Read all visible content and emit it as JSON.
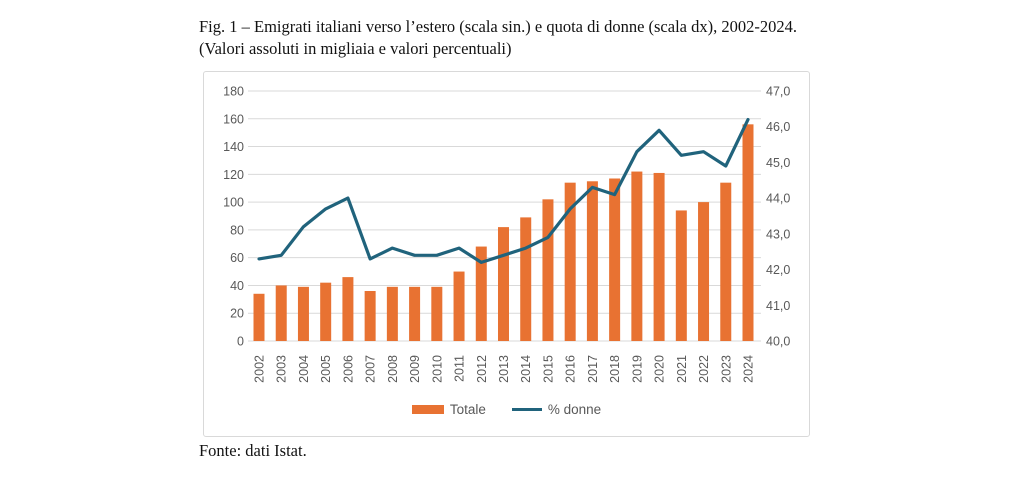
{
  "figure": {
    "title_line1": "Fig. 1 – Emigrati italiani verso l’estero (scala sin.) e quota di donne (scala dx), 2002-2024.",
    "title_line2": "(Valori assoluti in migliaia e valori percentuali)",
    "source": "Fonte: dati Istat."
  },
  "chart_data": {
    "type": "bar+line combo",
    "categories": [
      "2002",
      "2003",
      "2004",
      "2005",
      "2006",
      "2007",
      "2008",
      "2009",
      "2010",
      "2011",
      "2012",
      "2013",
      "2014",
      "2015",
      "2016",
      "2017",
      "2018",
      "2019",
      "2020",
      "2021",
      "2022",
      "2023",
      "2024"
    ],
    "series": [
      {
        "name": "Totale",
        "type": "bar",
        "axis": "left",
        "color": "#E87232",
        "values": [
          34,
          40,
          39,
          42,
          46,
          36,
          39,
          39,
          39,
          50,
          68,
          82,
          89,
          102,
          114,
          115,
          117,
          122,
          121,
          94,
          100,
          114,
          156
        ]
      },
      {
        "name": "% donne",
        "type": "line",
        "axis": "right",
        "color": "#20637C",
        "values": [
          42.3,
          42.4,
          43.2,
          43.7,
          44.0,
          42.3,
          42.6,
          42.4,
          42.4,
          42.6,
          42.2,
          42.4,
          42.6,
          42.9,
          43.7,
          44.3,
          44.1,
          45.3,
          45.9,
          45.2,
          45.3,
          44.9,
          46.2
        ]
      }
    ],
    "left_axis": {
      "min": 0,
      "max": 180,
      "step": 20,
      "ticks": [
        "180",
        "160",
        "140",
        "120",
        "100",
        "80",
        "60",
        "40",
        "20",
        "0"
      ]
    },
    "right_axis": {
      "min": 40,
      "max": 47,
      "step": 1,
      "ticks": [
        "47,0",
        "46,0",
        "45,0",
        "44,0",
        "43,0",
        "42,0",
        "41,0",
        "40,0"
      ]
    },
    "grid": true,
    "legend_position": "bottom",
    "gridline_color": "#d9d9d9",
    "tick_label_color": "#595959"
  }
}
